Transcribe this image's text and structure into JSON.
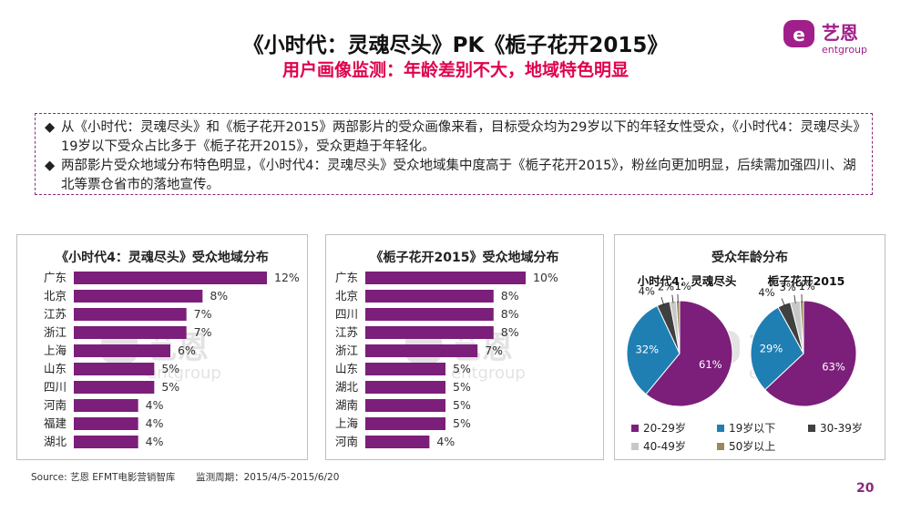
{
  "header": {
    "title": "《小时代：灵魂尽头》PK《栀子花开2015》",
    "subtitle": "用户画像监测：年龄差别不大，地域特色明显"
  },
  "logo": {
    "cn": "艺恩",
    "en": "entgroup"
  },
  "summary": [
    "从《小时代：灵魂尽头》和《栀子花开2015》两部影片的受众画像来看，目标受众均为29岁以下的年轻女性受众，《小时代4：灵魂尽头》19岁以下受众占比多于《栀子花开2015》，受众更趋于年轻化。",
    "两部影片受众地域分布特色明显，《小时代4：灵魂尽头》受众地域集中度高于《栀子花开2015》，粉丝向更加明显，后续需加强四川、湖北等票仓省市的落地宣传。"
  ],
  "bullet_symbol": "◆",
  "colors": {
    "bar": "#7b1f7a",
    "accent": "#e0004d",
    "frame": "#8b2a7a"
  },
  "chart_data": [
    {
      "type": "bar",
      "orientation": "horizontal",
      "title": "《小时代4：灵魂尽头》受众地域分布",
      "categories": [
        "广东",
        "北京",
        "江苏",
        "浙江",
        "上海",
        "山东",
        "四川",
        "河南",
        "福建",
        "湖北"
      ],
      "values": [
        12,
        8,
        7,
        7,
        6,
        5,
        5,
        4,
        4,
        4
      ],
      "unit": "%",
      "xlim": [
        0,
        12
      ]
    },
    {
      "type": "bar",
      "orientation": "horizontal",
      "title": "《栀子花开2015》受众地域分布",
      "categories": [
        "广东",
        "北京",
        "四川",
        "江苏",
        "浙江",
        "山东",
        "湖北",
        "湖南",
        "上海",
        "河南"
      ],
      "values": [
        10,
        8,
        8,
        8,
        7,
        5,
        5,
        5,
        5,
        4
      ],
      "unit": "%",
      "xlim": [
        0,
        10
      ]
    },
    {
      "type": "pie",
      "title": "受众年龄分布",
      "legend": [
        {
          "label": "20-29岁",
          "color": "#7b1f7a"
        },
        {
          "label": "19岁以下",
          "color": "#1f7fb3"
        },
        {
          "label": "30-39岁",
          "color": "#404040"
        },
        {
          "label": "40-49岁",
          "color": "#c8c8c8"
        },
        {
          "label": "50岁以上",
          "color": "#9a8a5a"
        }
      ],
      "pies": [
        {
          "name": "小时代4：灵魂尽头",
          "values": [
            61,
            32,
            4,
            2,
            1
          ]
        },
        {
          "name": "栀子花开2015",
          "values": [
            63,
            29,
            4,
            3,
            1
          ]
        }
      ],
      "legend_position": "bottom"
    }
  ],
  "watermark": {
    "cn": "艺恩",
    "en": "entgroup"
  },
  "footer": {
    "source": "Source: 艺恩 EFMT电影营销智库",
    "period": "监测周期：2015/4/5-2015/6/20",
    "page": "20"
  }
}
